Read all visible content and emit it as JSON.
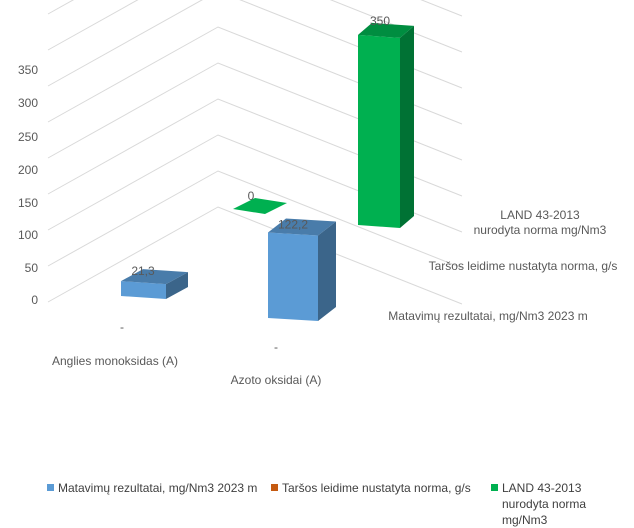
{
  "chart_data": {
    "type": "bar",
    "subtype": "3d-column",
    "categories": [
      "Anglies monoksidas (A)",
      "Azoto oksidai (A)"
    ],
    "series": [
      {
        "name": "Matavimų rezultatai, mg/Nm3 2023 m",
        "values": [
          21.3,
          122.2
        ],
        "data_labels": [
          "21,3",
          "122,2"
        ],
        "color": "#5B9BD5"
      },
      {
        "name": "Taršos leidime nustatyta norma, g/s",
        "values": [
          null,
          null
        ],
        "data_labels": [
          "-",
          "-"
        ],
        "color": "#C55A11"
      },
      {
        "name": "LAND 43-2013\nnurodyta norma mg/Nm3",
        "values": [
          0,
          350
        ],
        "data_labels": [
          "0",
          "350"
        ],
        "color": "#00B050"
      }
    ],
    "yticks": [
      "0",
      "50",
      "100",
      "150",
      "200",
      "250",
      "300",
      "350"
    ],
    "ylim": [
      0,
      350
    ],
    "grid": true,
    "legend_position": "bottom"
  }
}
